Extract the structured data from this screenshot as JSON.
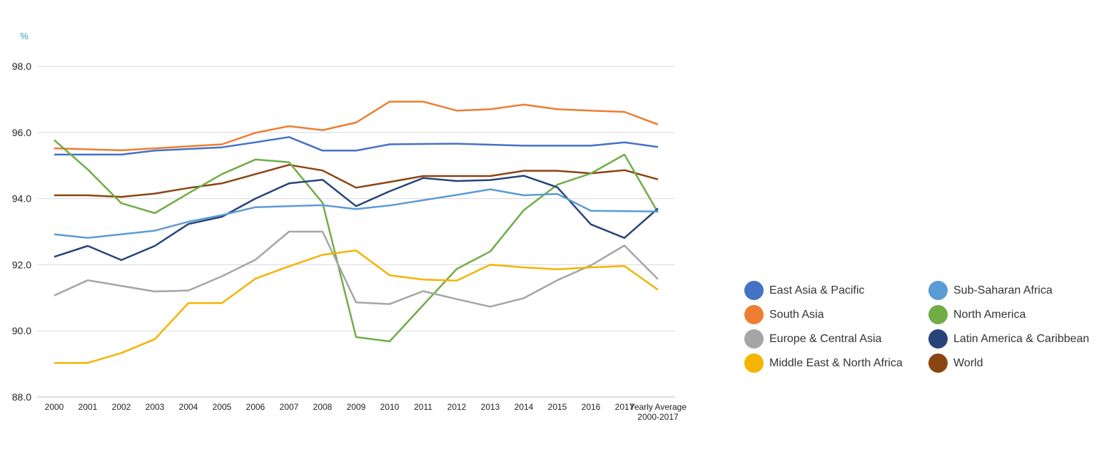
{
  "chart_data": {
    "type": "line",
    "unit_label": "%",
    "ylim": [
      88.0,
      98.0
    ],
    "yticks": [
      "98.0",
      "96.0",
      "94.0",
      "92.0",
      "90.0",
      "88.0"
    ],
    "ytick_values": [
      98,
      96,
      94,
      92,
      90,
      88
    ],
    "categories": [
      "2000",
      "2001",
      "2002",
      "2003",
      "2004",
      "2005",
      "2006",
      "2007",
      "2008",
      "2009",
      "2010",
      "2011",
      "2012",
      "2013",
      "2014",
      "2015",
      "2016",
      "2017",
      "Yearly Average 2000-2017"
    ],
    "category_lines": [
      [
        "2000"
      ],
      [
        "2001"
      ],
      [
        "2002"
      ],
      [
        "2003"
      ],
      [
        "2004"
      ],
      [
        "2005"
      ],
      [
        "2006"
      ],
      [
        "2007"
      ],
      [
        "2008"
      ],
      [
        "2009"
      ],
      [
        "2010"
      ],
      [
        "2011"
      ],
      [
        "2012"
      ],
      [
        "2013"
      ],
      [
        "2014"
      ],
      [
        "2015"
      ],
      [
        "2016"
      ],
      [
        "2017"
      ],
      [
        "Yearly Average",
        "2000-2017"
      ]
    ],
    "grid": true,
    "legend_position": "right",
    "series": [
      {
        "name": "South Asia",
        "color": "#ed7d31",
        "values": [
          95.52,
          95.49,
          95.46,
          95.52,
          95.58,
          95.64,
          95.99,
          96.19,
          96.07,
          96.3,
          96.93,
          96.93,
          96.66,
          96.7,
          96.84,
          96.7,
          96.66,
          96.62,
          96.24
        ]
      },
      {
        "name": "East Asia & Pacific",
        "color": "#4472c4",
        "values": [
          95.33,
          95.33,
          95.33,
          95.45,
          95.5,
          95.55,
          95.7,
          95.86,
          95.45,
          95.45,
          95.64,
          95.65,
          95.66,
          95.63,
          95.6,
          95.6,
          95.6,
          95.7,
          95.56
        ]
      },
      {
        "name": "World",
        "color": "#8b4513",
        "values": [
          94.1,
          94.1,
          94.05,
          94.15,
          94.32,
          94.46,
          94.74,
          95.02,
          94.85,
          94.33,
          94.5,
          94.68,
          94.68,
          94.68,
          94.84,
          94.84,
          94.76,
          94.86,
          94.58
        ]
      },
      {
        "name": "North America",
        "color": "#70ad47",
        "values": [
          95.77,
          94.88,
          93.86,
          93.56,
          94.16,
          94.74,
          95.18,
          95.1,
          93.87,
          89.81,
          89.68,
          90.78,
          91.87,
          92.4,
          93.65,
          94.42,
          94.76,
          95.33,
          93.58
        ]
      },
      {
        "name": "Latin America & Caribbean",
        "color": "#264478",
        "values": [
          92.24,
          92.57,
          92.14,
          92.57,
          93.23,
          93.45,
          94.0,
          94.46,
          94.57,
          93.77,
          94.22,
          94.62,
          94.53,
          94.56,
          94.69,
          94.34,
          93.22,
          92.81,
          93.7
        ]
      },
      {
        "name": "Sub-Saharan Africa",
        "color": "#5b9bd5",
        "values": [
          92.92,
          92.81,
          92.92,
          93.03,
          93.3,
          93.5,
          93.74,
          93.77,
          93.8,
          93.68,
          93.79,
          93.95,
          94.11,
          94.28,
          94.1,
          94.14,
          93.63,
          93.62,
          93.61
        ]
      },
      {
        "name": "Europe & Central Asia",
        "color": "#a5a5a5",
        "values": [
          91.07,
          91.53,
          91.36,
          91.19,
          91.22,
          91.65,
          92.15,
          93.0,
          93.0,
          90.86,
          90.81,
          91.2,
          90.96,
          90.73,
          90.99,
          91.53,
          91.98,
          92.58,
          91.56
        ]
      },
      {
        "name": "Middle East & North Africa",
        "color": "#f4b400",
        "values": [
          89.03,
          89.03,
          89.33,
          89.75,
          90.84,
          90.84,
          91.58,
          91.95,
          92.3,
          92.43,
          91.68,
          91.55,
          91.52,
          92.0,
          91.92,
          91.86,
          91.92,
          91.96,
          91.24
        ]
      }
    ],
    "legend_items": [
      {
        "name": "East Asia & Pacific",
        "color": "#4472c4"
      },
      {
        "name": "Sub-Saharan Africa",
        "color": "#5b9bd5"
      },
      {
        "name": "South Asia",
        "color": "#ed7d31"
      },
      {
        "name": "North America",
        "color": "#70ad47"
      },
      {
        "name": "Europe & Central Asia",
        "color": "#a5a5a5"
      },
      {
        "name": "Latin America & Caribbean",
        "color": "#264478"
      },
      {
        "name": "Middle East & North Africa",
        "color": "#f4b400"
      },
      {
        "name": "World",
        "color": "#8b4513"
      }
    ]
  }
}
